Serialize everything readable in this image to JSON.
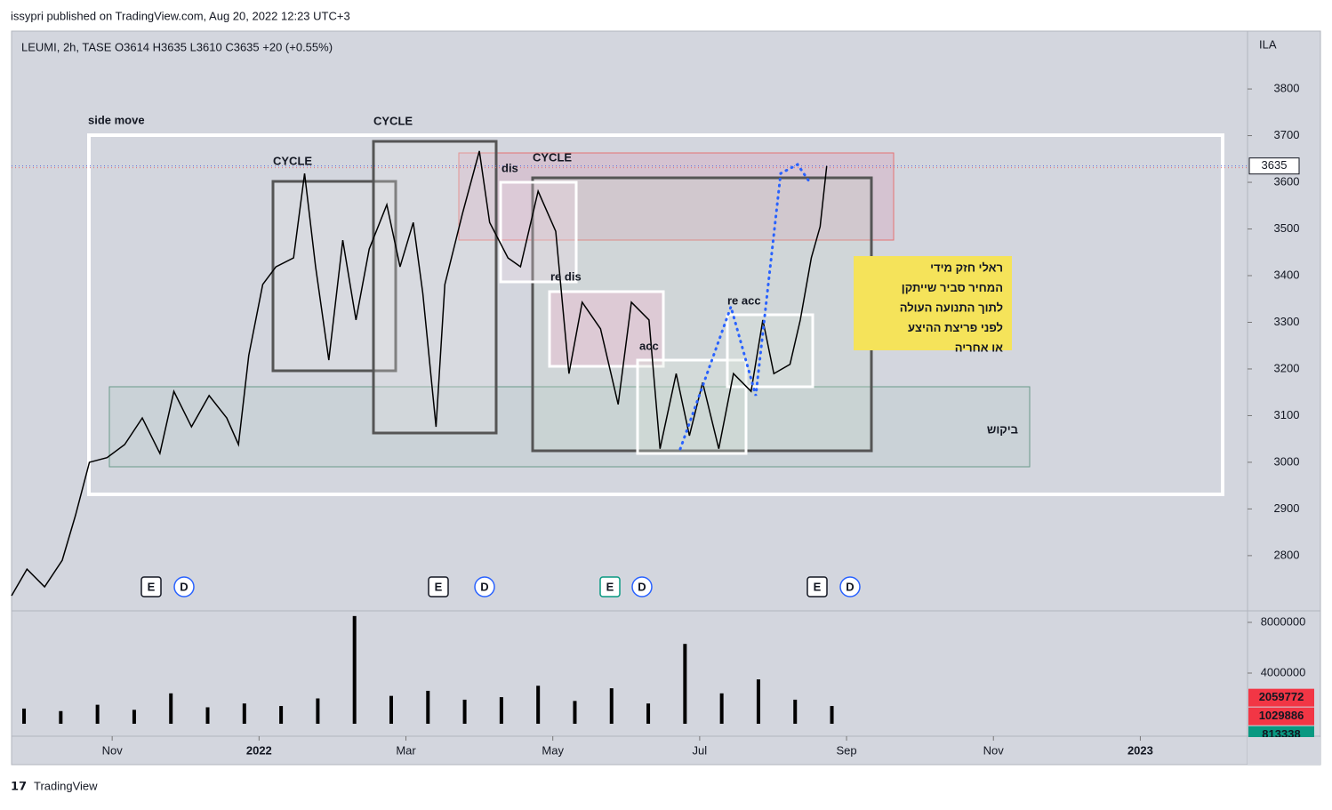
{
  "chart_data": [
    {
      "type": "line",
      "title": "issypri published on TradingView.com, Aug 20, 2022 12:23 UTC+3",
      "subtitle": "LEUMI, 2h, TASE  O3614  H3635  L3610  C3635  +20 (+0.55%)",
      "y_label": "ILA",
      "x": [
        -0.37,
        -0.16,
        0.08,
        0.32,
        0.5,
        0.69,
        0.93,
        1.17,
        1.41,
        1.65,
        1.84,
        2.08,
        2.32,
        2.56,
        2.72,
        2.86,
        3.05,
        3.23,
        3.47,
        3.62,
        3.77,
        3.95,
        4.14,
        4.32,
        4.5,
        4.74,
        4.92,
        5.1,
        5.23,
        5.41,
        5.53,
        5.77,
        6.0,
        6.14,
        6.39,
        6.56,
        6.8,
        7.04,
        7.22,
        7.4,
        7.65,
        7.89,
        8.07,
        8.31,
        8.46,
        8.68,
        8.86,
        9.04,
        9.26,
        9.46,
        9.7,
        9.86,
        10.01,
        10.23,
        10.37,
        10.52,
        10.64,
        10.73
      ],
      "series": [
        {
          "name": "LEUMI",
          "color": "#000000",
          "values": [
            2714,
            2771,
            2733,
            2790,
            2886,
            3000,
            3010,
            3038,
            3095,
            3019,
            3152,
            3076,
            3143,
            3095,
            3038,
            3229,
            3381,
            3419,
            3438,
            3619,
            3419,
            3219,
            3476,
            3305,
            3457,
            3552,
            3419,
            3514,
            3362,
            3076,
            3381,
            3533,
            3667,
            3514,
            3438,
            3419,
            3581,
            3495,
            3190,
            3343,
            3286,
            3124,
            3343,
            3305,
            3029,
            3190,
            3057,
            3171,
            3029,
            3190,
            3152,
            3305,
            3190,
            3210,
            3305,
            3438,
            3505,
            3635
          ]
        }
      ],
      "last_value": 3635,
      "xlim": [
        -0.37,
        16.46
      ],
      "xticks": [
        {
          "value": 1,
          "label": "Nov"
        },
        {
          "value": 3,
          "label": "2022"
        },
        {
          "value": 5,
          "label": "Mar"
        },
        {
          "value": 7,
          "label": "May"
        },
        {
          "value": 9,
          "label": "Jul"
        },
        {
          "value": 11,
          "label": "Sep"
        },
        {
          "value": 13,
          "label": "Nov"
        },
        {
          "value": 15,
          "label": "2023"
        }
      ],
      "ylim": [
        2695,
        3924
      ],
      "yticks": [
        2800,
        2900,
        3000,
        3100,
        3200,
        3300,
        3400,
        3500,
        3600,
        3700,
        3800
      ],
      "annotations": [
        "side move",
        "CYCLE",
        "CYCLE",
        "CYCLE",
        "dis",
        "re dis",
        "acc",
        "re acc",
        "ביקוש"
      ],
      "note": [
        "ראלי חזק מידי",
        "המחיר סביר שייתקן",
        "לתוך התנועה העולה",
        "לפני פריצת ההיצע",
        "או אחריה"
      ],
      "events": [
        "E",
        "D",
        "E",
        "D",
        "E",
        "D",
        "E",
        "D"
      ]
    },
    {
      "type": "bar",
      "x": [
        -0.2,
        0.3,
        0.8,
        1.3,
        1.8,
        2.3,
        2.8,
        3.3,
        3.8,
        4.3,
        4.8,
        5.3,
        5.8,
        6.3,
        6.8,
        7.3,
        7.8,
        8.3,
        8.8,
        9.3,
        9.8,
        10.3,
        10.8
      ],
      "values": [
        1200000,
        1000000,
        1500000,
        1100000,
        2400000,
        1300000,
        1600000,
        1400000,
        2000000,
        8500000,
        2200000,
        2600000,
        1900000,
        2100000,
        3000000,
        1800000,
        2800000,
        1600000,
        6300000,
        2400000,
        3500000,
        1900000,
        1400000
      ],
      "color": "#000000",
      "ylim": [
        -420000,
        8700000
      ],
      "yticks": [
        4000000,
        8000000
      ],
      "last_values": [
        {
          "value": 2059772,
          "color": "#f23645"
        },
        {
          "value": 1029886,
          "color": "#f23645"
        },
        {
          "value": 813338,
          "color": "#089981"
        }
      ],
      "footer": "TradingView"
    }
  ]
}
